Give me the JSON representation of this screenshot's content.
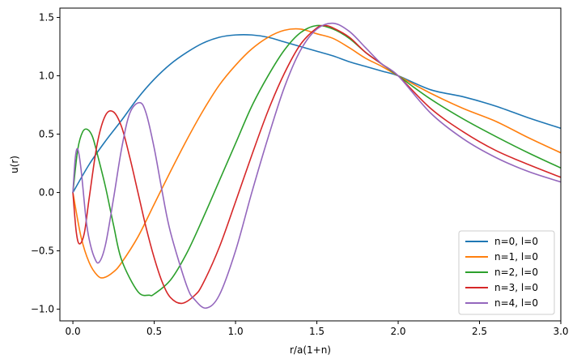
{
  "chart_data": {
    "type": "line",
    "title": "",
    "xlabel": "r/a(1+n)",
    "ylabel": "u(r)",
    "xlim": [
      -0.08,
      3.0
    ],
    "ylim": [
      -1.1,
      1.58
    ],
    "xticks": [
      0.0,
      0.5,
      1.0,
      1.5,
      2.0,
      2.5,
      3.0
    ],
    "xtick_labels": [
      "0.0",
      "0.5",
      "1.0",
      "1.5",
      "2.0",
      "2.5",
      "3.0"
    ],
    "yticks": [
      -1.0,
      -0.5,
      0.0,
      0.5,
      1.0,
      1.5
    ],
    "ytick_labels": [
      "−1.0",
      "−0.5",
      "0.0",
      "0.5",
      "1.0",
      "1.5"
    ],
    "grid": false,
    "legend_position": "lower-right",
    "series": [
      {
        "name": "n=0, l=0",
        "color": "#1f77b4",
        "x": [
          0.0,
          0.1,
          0.2,
          0.3,
          0.4,
          0.5,
          0.6,
          0.7,
          0.8,
          0.9,
          1.0,
          1.1,
          1.2,
          1.3,
          1.4,
          1.5,
          1.6,
          1.7,
          1.8,
          1.9,
          2.0,
          2.2,
          2.4,
          2.6,
          2.8,
          3.0
        ],
        "y": [
          0.0,
          0.24,
          0.44,
          0.62,
          0.81,
          0.97,
          1.1,
          1.2,
          1.28,
          1.33,
          1.35,
          1.35,
          1.33,
          1.29,
          1.25,
          1.21,
          1.17,
          1.12,
          1.08,
          1.04,
          1.0,
          0.88,
          0.82,
          0.74,
          0.64,
          0.55
        ]
      },
      {
        "name": "n=1, l=0",
        "color": "#ff7f0e",
        "x": [
          0.0,
          0.05,
          0.1,
          0.15,
          0.19,
          0.25,
          0.3,
          0.4,
          0.5,
          0.6,
          0.7,
          0.8,
          0.9,
          1.0,
          1.1,
          1.2,
          1.3,
          1.4,
          1.5,
          1.6,
          1.7,
          1.8,
          1.9,
          2.0,
          2.2,
          2.4,
          2.6,
          2.8,
          3.0
        ],
        "y": [
          0.0,
          -0.38,
          -0.6,
          -0.71,
          -0.73,
          -0.68,
          -0.6,
          -0.38,
          -0.1,
          0.18,
          0.45,
          0.7,
          0.92,
          1.09,
          1.23,
          1.33,
          1.39,
          1.4,
          1.36,
          1.32,
          1.24,
          1.15,
          1.08,
          1.0,
          0.85,
          0.72,
          0.61,
          0.47,
          0.34
        ]
      },
      {
        "name": "n=2, l=0",
        "color": "#2ca02c",
        "x": [
          0.0,
          0.03,
          0.06,
          0.09,
          0.12,
          0.15,
          0.2,
          0.25,
          0.3,
          0.4,
          0.47,
          0.5,
          0.6,
          0.7,
          0.8,
          0.9,
          1.0,
          1.1,
          1.2,
          1.3,
          1.4,
          1.5,
          1.6,
          1.7,
          1.8,
          1.9,
          2.0,
          2.2,
          2.4,
          2.6,
          2.8,
          3.0
        ],
        "y": [
          0.0,
          0.37,
          0.52,
          0.54,
          0.48,
          0.33,
          0.05,
          -0.28,
          -0.58,
          -0.85,
          -0.88,
          -0.87,
          -0.75,
          -0.52,
          -0.22,
          0.1,
          0.42,
          0.74,
          1.0,
          1.22,
          1.37,
          1.43,
          1.4,
          1.32,
          1.2,
          1.1,
          1.0,
          0.8,
          0.63,
          0.48,
          0.34,
          0.21
        ]
      },
      {
        "name": "n=3, l=0",
        "color": "#d62728",
        "x": [
          0.0,
          0.02,
          0.04,
          0.07,
          0.1,
          0.15,
          0.2,
          0.25,
          0.3,
          0.35,
          0.4,
          0.45,
          0.5,
          0.55,
          0.6,
          0.67,
          0.75,
          0.8,
          0.9,
          1.0,
          1.1,
          1.2,
          1.3,
          1.4,
          1.5,
          1.55,
          1.6,
          1.7,
          1.8,
          1.9,
          2.0,
          2.2,
          2.4,
          2.6,
          2.8,
          3.0
        ],
        "y": [
          0.0,
          -0.33,
          -0.44,
          -0.35,
          -0.05,
          0.42,
          0.66,
          0.69,
          0.56,
          0.3,
          0.0,
          -0.3,
          -0.56,
          -0.77,
          -0.9,
          -0.95,
          -0.88,
          -0.78,
          -0.47,
          -0.08,
          0.32,
          0.7,
          1.02,
          1.27,
          1.41,
          1.43,
          1.41,
          1.33,
          1.2,
          1.1,
          1.0,
          0.72,
          0.52,
          0.36,
          0.24,
          0.13
        ]
      },
      {
        "name": "n=4, l=0",
        "color": "#9467bd",
        "x": [
          0.0,
          0.015,
          0.03,
          0.05,
          0.08,
          0.1,
          0.13,
          0.16,
          0.2,
          0.25,
          0.3,
          0.35,
          0.41,
          0.45,
          0.5,
          0.55,
          0.6,
          0.7,
          0.75,
          0.82,
          0.9,
          1.0,
          1.1,
          1.2,
          1.3,
          1.4,
          1.5,
          1.6,
          1.7,
          1.8,
          1.9,
          2.0,
          2.2,
          2.4,
          2.6,
          2.8,
          3.0
        ],
        "y": [
          0.0,
          0.3,
          0.37,
          0.2,
          -0.22,
          -0.4,
          -0.55,
          -0.6,
          -0.45,
          -0.05,
          0.38,
          0.68,
          0.77,
          0.68,
          0.38,
          0.0,
          -0.34,
          -0.8,
          -0.92,
          -0.99,
          -0.88,
          -0.5,
          0.0,
          0.47,
          0.9,
          1.22,
          1.4,
          1.45,
          1.38,
          1.24,
          1.1,
          1.0,
          0.68,
          0.46,
          0.3,
          0.18,
          0.09
        ]
      }
    ]
  }
}
